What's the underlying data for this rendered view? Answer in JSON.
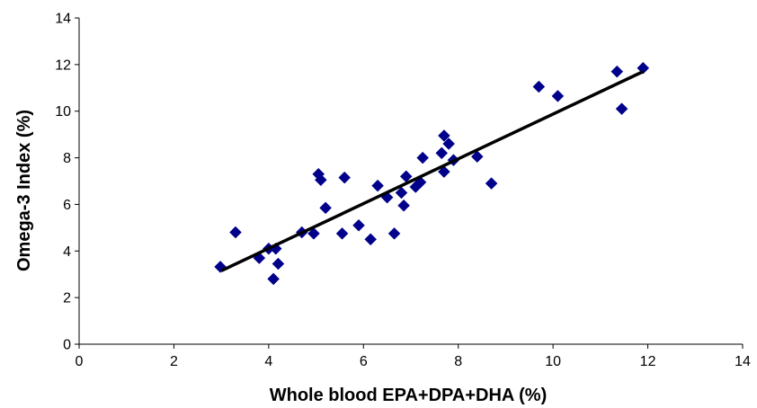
{
  "chart_data": {
    "type": "scatter",
    "title": "",
    "xlabel": "Whole blood EPA+DPA+DHA (%)",
    "ylabel": "Omega-3 Index (%)",
    "xlim": [
      0,
      14
    ],
    "ylim": [
      0,
      14
    ],
    "x_ticks": [
      "0",
      "2",
      "4",
      "6",
      "8",
      "10",
      "12",
      "14"
    ],
    "y_ticks": [
      "0",
      "2",
      "4",
      "6",
      "8",
      "10",
      "12",
      "14"
    ],
    "grid": false,
    "legend": "none",
    "marker": "diamond",
    "marker_color": "#00008B",
    "trendline": {
      "type": "linear",
      "x": [
        3.0,
        11.9
      ],
      "y": [
        3.15,
        11.7
      ],
      "color": "#000000"
    },
    "points": [
      {
        "x": 2.98,
        "y": 3.32
      },
      {
        "x": 3.3,
        "y": 4.8
      },
      {
        "x": 3.8,
        "y": 3.7
      },
      {
        "x": 4.0,
        "y": 4.1
      },
      {
        "x": 4.1,
        "y": 2.8
      },
      {
        "x": 4.15,
        "y": 4.1
      },
      {
        "x": 4.2,
        "y": 3.45
      },
      {
        "x": 4.7,
        "y": 4.8
      },
      {
        "x": 4.95,
        "y": 4.75
      },
      {
        "x": 5.05,
        "y": 7.3
      },
      {
        "x": 5.1,
        "y": 7.05
      },
      {
        "x": 5.2,
        "y": 5.85
      },
      {
        "x": 5.55,
        "y": 4.75
      },
      {
        "x": 5.6,
        "y": 7.15
      },
      {
        "x": 5.9,
        "y": 5.1
      },
      {
        "x": 6.15,
        "y": 4.5
      },
      {
        "x": 6.3,
        "y": 6.8
      },
      {
        "x": 6.5,
        "y": 6.3
      },
      {
        "x": 6.65,
        "y": 4.75
      },
      {
        "x": 6.8,
        "y": 6.5
      },
      {
        "x": 6.85,
        "y": 5.95
      },
      {
        "x": 6.9,
        "y": 7.2
      },
      {
        "x": 7.1,
        "y": 6.75
      },
      {
        "x": 7.2,
        "y": 6.95
      },
      {
        "x": 7.25,
        "y": 8.0
      },
      {
        "x": 7.65,
        "y": 8.2
      },
      {
        "x": 7.7,
        "y": 8.95
      },
      {
        "x": 7.7,
        "y": 7.4
      },
      {
        "x": 7.8,
        "y": 8.6
      },
      {
        "x": 7.9,
        "y": 7.9
      },
      {
        "x": 8.4,
        "y": 8.05
      },
      {
        "x": 8.7,
        "y": 6.9
      },
      {
        "x": 9.7,
        "y": 11.05
      },
      {
        "x": 10.1,
        "y": 10.65
      },
      {
        "x": 11.35,
        "y": 11.7
      },
      {
        "x": 11.45,
        "y": 10.1
      },
      {
        "x": 11.9,
        "y": 11.85
      }
    ]
  }
}
